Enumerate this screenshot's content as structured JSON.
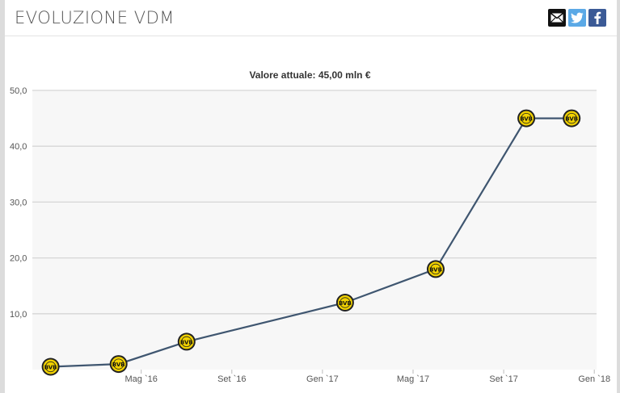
{
  "header": {
    "title": "EVOLUZIONE VDM",
    "share_icons": [
      "mail-icon",
      "twitter-icon",
      "facebook-icon"
    ]
  },
  "chart_data": {
    "type": "line",
    "title": "Valore attuale: 45,00 mln €",
    "xlabel": "",
    "ylabel": "",
    "ylim": [
      0,
      50
    ],
    "yticks": [
      "10,0",
      "20,0",
      "30,0",
      "40,0",
      "50,0"
    ],
    "xticks": [
      "Mag `16",
      "Set `16",
      "Gen `17",
      "Mag `17",
      "Set `17",
      "Gen `18"
    ],
    "grid": true,
    "line_color": "#3f5670",
    "marker": "bvb-crest",
    "marker_color": "#f2d200",
    "series": [
      {
        "values": [
          {
            "x": "2016-01",
            "y": 0.5
          },
          {
            "x": "2016-04",
            "y": 1.0
          },
          {
            "x": "2016-07",
            "y": 5.0
          },
          {
            "x": "2017-02",
            "y": 12.0
          },
          {
            "x": "2017-06",
            "y": 18.0
          },
          {
            "x": "2017-10",
            "y": 45.0
          },
          {
            "x": "2017-12",
            "y": 45.0
          }
        ]
      }
    ]
  }
}
